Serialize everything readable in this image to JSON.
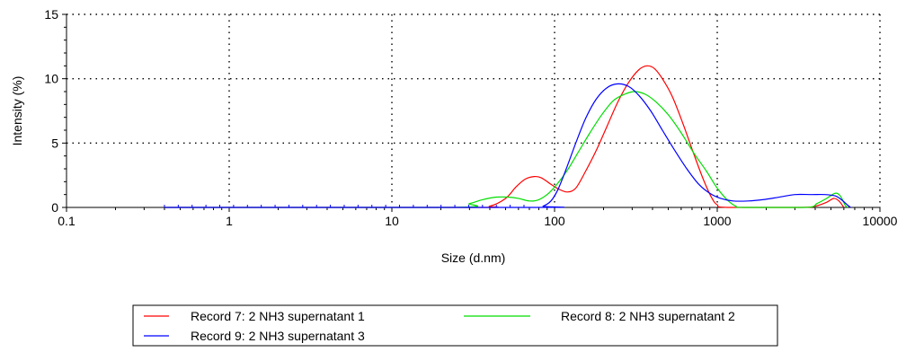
{
  "chart_data": {
    "type": "line",
    "xlabel": "Size (d.nm)",
    "ylabel": "Intensity (%)",
    "x_scale": "log",
    "xlim": [
      0.1,
      10000
    ],
    "ylim": [
      0,
      15
    ],
    "x_ticks": [
      {
        "value": 0.1,
        "label": "0.1"
      },
      {
        "value": 1,
        "label": "1"
      },
      {
        "value": 10,
        "label": "10"
      },
      {
        "value": 100,
        "label": "100"
      },
      {
        "value": 1000,
        "label": "1000"
      },
      {
        "value": 10000,
        "label": "10000"
      }
    ],
    "y_ticks": [
      {
        "value": 0,
        "label": "0"
      },
      {
        "value": 5,
        "label": "5"
      },
      {
        "value": 10,
        "label": "10"
      },
      {
        "value": 15,
        "label": "15"
      }
    ],
    "grid": "dotted",
    "legend_position": "bottom",
    "series": [
      {
        "name": "Record 7: 2 NH3 supernatant 1",
        "color": "#ff0000",
        "points": [
          [
            0.4,
            0
          ],
          [
            30,
            0
          ],
          [
            40,
            0.1
          ],
          [
            50,
            0.7
          ],
          [
            58,
            1.6
          ],
          [
            66,
            2.2
          ],
          [
            75,
            2.4
          ],
          [
            83,
            2.3
          ],
          [
            95,
            1.8
          ],
          [
            107,
            1.4
          ],
          [
            120,
            1.2
          ],
          [
            135,
            1.5
          ],
          [
            155,
            2.8
          ],
          [
            180,
            4.4
          ],
          [
            210,
            6.3
          ],
          [
            245,
            8.2
          ],
          [
            285,
            9.7
          ],
          [
            330,
            10.7
          ],
          [
            370,
            11.0
          ],
          [
            410,
            10.8
          ],
          [
            460,
            10.0
          ],
          [
            530,
            8.6
          ],
          [
            620,
            6.4
          ],
          [
            720,
            4.1
          ],
          [
            820,
            2.2
          ],
          [
            920,
            0.8
          ],
          [
            1000,
            0.2
          ],
          [
            1150,
            0
          ],
          [
            3300,
            0
          ],
          [
            4000,
            0.1
          ],
          [
            4700,
            0.4
          ],
          [
            5200,
            0.7
          ],
          [
            5600,
            0.5
          ],
          [
            6000,
            0
          ]
        ]
      },
      {
        "name": "Record 8: 2 NH3 supernatant 2",
        "color": "#00dd00",
        "points": [
          [
            0.4,
            0
          ],
          [
            23,
            0
          ],
          [
            30,
            0.3
          ],
          [
            36,
            0.6
          ],
          [
            44,
            0.8
          ],
          [
            52,
            0.8
          ],
          [
            60,
            0.7
          ],
          [
            70,
            0.5
          ],
          [
            80,
            0.6
          ],
          [
            92,
            1.1
          ],
          [
            105,
            1.9
          ],
          [
            120,
            2.9
          ],
          [
            140,
            4.3
          ],
          [
            165,
            5.8
          ],
          [
            195,
            7.2
          ],
          [
            230,
            8.3
          ],
          [
            270,
            8.8
          ],
          [
            310,
            9.0
          ],
          [
            360,
            8.8
          ],
          [
            420,
            8.2
          ],
          [
            500,
            7.2
          ],
          [
            600,
            5.8
          ],
          [
            720,
            4.2
          ],
          [
            860,
            2.8
          ],
          [
            1000,
            1.5
          ],
          [
            1150,
            0.6
          ],
          [
            1300,
            0.1
          ],
          [
            1450,
            0
          ],
          [
            3500,
            0
          ],
          [
            4100,
            0.3
          ],
          [
            4700,
            0.7
          ],
          [
            5300,
            1.1
          ],
          [
            5700,
            0.9
          ],
          [
            6100,
            0.2
          ],
          [
            6300,
            0
          ]
        ]
      },
      {
        "name": "Record 9: 2 NH3 supernatant 3",
        "color": "#0000ff",
        "points": [
          [
            0.4,
            0
          ],
          [
            75,
            0
          ],
          [
            85,
            0.1
          ],
          [
            95,
            0.5
          ],
          [
            105,
            1.4
          ],
          [
            118,
            3.0
          ],
          [
            135,
            5.0
          ],
          [
            155,
            6.9
          ],
          [
            180,
            8.4
          ],
          [
            210,
            9.3
          ],
          [
            245,
            9.6
          ],
          [
            285,
            9.4
          ],
          [
            330,
            8.7
          ],
          [
            390,
            7.5
          ],
          [
            460,
            6.0
          ],
          [
            550,
            4.4
          ],
          [
            650,
            3.0
          ],
          [
            770,
            1.8
          ],
          [
            900,
            1.1
          ],
          [
            1050,
            0.7
          ],
          [
            1250,
            0.5
          ],
          [
            1550,
            0.5
          ],
          [
            1900,
            0.6
          ],
          [
            2400,
            0.8
          ],
          [
            3000,
            1.0
          ],
          [
            3800,
            1.0
          ],
          [
            4600,
            1.0
          ],
          [
            5300,
            0.9
          ],
          [
            5800,
            0.6
          ],
          [
            6300,
            0.2
          ],
          [
            6600,
            0
          ]
        ]
      }
    ]
  }
}
